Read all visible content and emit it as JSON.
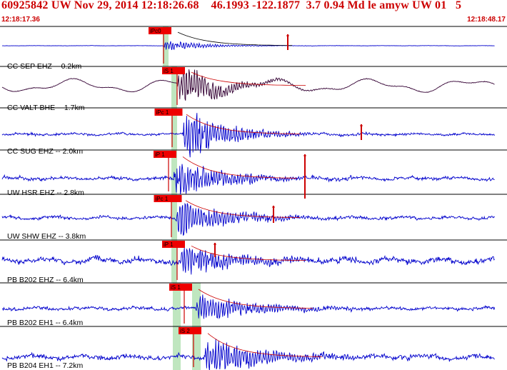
{
  "header": {
    "event_id": "60925842",
    "network": "UW",
    "datetime": "Nov 29, 2014 12:18:26.68",
    "latitude": "46.1993",
    "longitude": "-122.1877",
    "depth": "3.7",
    "magnitude": "0.94",
    "magnitude_type": "Md",
    "flags": "le",
    "source": "amyw",
    "origin_tag": "UW 01",
    "trailing": "5",
    "time_start": "12:18:17.36",
    "time_end": "12:18:48.17"
  },
  "colors": {
    "header_text": "#cc0000",
    "trace_default": "#0000cc",
    "trace_broadband": "#330033",
    "pick_label_bg": "#ee0000",
    "pick_line": "#cc0000",
    "window_band": "#bfe6bf",
    "separator": "#000000"
  },
  "traces": [
    {
      "label": "CC SEP EHZ -- 0.2km",
      "pick": "iPc0",
      "style": "default",
      "amp": 0.25,
      "noise": 0.03
    },
    {
      "label": "CC VALT BHE -- 1.7km",
      "pick": "iS 1",
      "style": "broadband",
      "amp": 0.7,
      "noise": 0.07
    },
    {
      "label": "CC SUG EHZ -- 2.0km",
      "pick": "iPc 1",
      "style": "default",
      "amp": 0.75,
      "noise": 0.22
    },
    {
      "label": "UW HSR EHZ -- 2.8km",
      "pick": "iP 1",
      "style": "default",
      "amp": 0.6,
      "noise": 0.32
    },
    {
      "label": "UW SHW EHZ -- 3.8km",
      "pick": "iPc 1",
      "style": "default",
      "amp": 0.55,
      "noise": 0.3
    },
    {
      "label": "PB B202 EHZ -- 6.4km",
      "pick": "iP 1",
      "style": "default",
      "amp": 0.55,
      "noise": 0.55
    },
    {
      "label": "PB B202 EH1 -- 6.4km",
      "pick": "iS 1",
      "style": "default",
      "amp": 0.5,
      "noise": 0.3
    },
    {
      "label": "PB B204 EH1 -- 7.2km",
      "pick": "iS 2",
      "style": "default",
      "amp": 0.6,
      "noise": 0.45
    }
  ]
}
